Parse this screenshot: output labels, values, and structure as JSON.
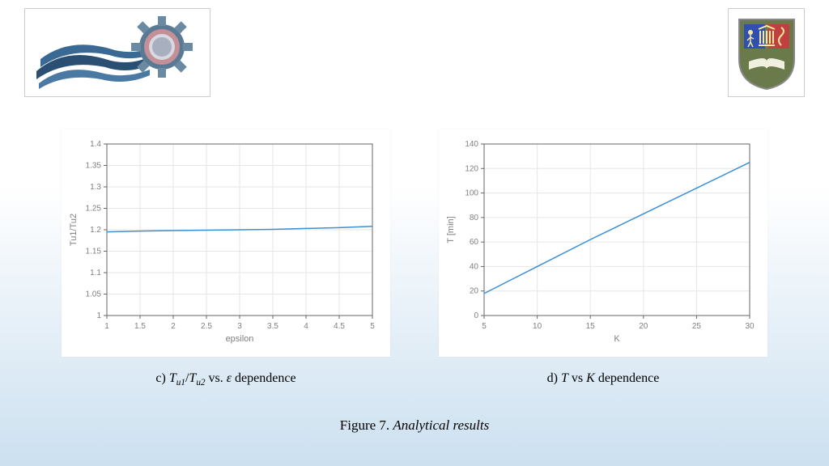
{
  "logos": {
    "left_name": "wave-gear-logo",
    "right_name": "university-shield-logo"
  },
  "chart_left": {
    "type": "line",
    "xlabel": "epsilon",
    "ylabel": "Tu1/Tu2",
    "xlim": [
      1,
      5
    ],
    "ylim": [
      1,
      1.4
    ],
    "xticks": [
      1,
      1.5,
      2,
      2.5,
      3,
      3.5,
      4,
      4.5,
      5
    ],
    "yticks": [
      1,
      1.05,
      1.1,
      1.15,
      1.2,
      1.25,
      1.3,
      1.35,
      1.4
    ],
    "xtick_labels": [
      "1",
      "1.5",
      "2",
      "2.5",
      "3",
      "3.5",
      "4",
      "4.5",
      "5"
    ],
    "ytick_labels": [
      "1",
      "1.05",
      "1.1",
      "1.15",
      "1.2",
      "1.25",
      "1.3",
      "1.35",
      "1.4"
    ],
    "line_color": "#3b8fd6",
    "line_width": 1.5,
    "grid_color": "#e6e6e6",
    "axis_color": "#666666",
    "background_color": "#ffffff",
    "tick_font_size": 10,
    "label_font_size": 11,
    "label_color": "#808080",
    "data_x": [
      1,
      1.5,
      2,
      2.5,
      3,
      3.5,
      4,
      4.5,
      5
    ],
    "data_y": [
      1.195,
      1.197,
      1.198,
      1.199,
      1.2,
      1.201,
      1.203,
      1.205,
      1.208
    ]
  },
  "chart_right": {
    "type": "line",
    "xlabel": "K",
    "ylabel": "T [min]",
    "xlim": [
      5,
      30
    ],
    "ylim": [
      0,
      140
    ],
    "xticks": [
      5,
      10,
      15,
      20,
      25,
      30
    ],
    "yticks": [
      0,
      20,
      40,
      60,
      80,
      100,
      120,
      140
    ],
    "xtick_labels": [
      "5",
      "10",
      "15",
      "20",
      "25",
      "30"
    ],
    "ytick_labels": [
      "0",
      "20",
      "40",
      "60",
      "80",
      "100",
      "120",
      "140"
    ],
    "line_color": "#3b8fd6",
    "line_width": 1.5,
    "grid_color": "#e6e6e6",
    "axis_color": "#666666",
    "background_color": "#ffffff",
    "tick_font_size": 10,
    "label_font_size": 11,
    "label_color": "#808080",
    "data_x": [
      5,
      10,
      15,
      20,
      25,
      30
    ],
    "data_y": [
      18,
      40,
      62,
      83,
      104,
      125
    ]
  },
  "captions": {
    "left_prefix": "c) ",
    "left_var1": "T",
    "left_sub1": "u1",
    "left_slash": "/",
    "left_var2": "T",
    "left_sub2": "u2",
    "left_mid": "  vs. ",
    "left_eps": "ε",
    "left_suffix": " dependence",
    "right_prefix": "d) ",
    "right_T": "T",
    "right_mid": " vs ",
    "right_K": "K",
    "right_suffix": " dependence",
    "figure_label": "Figure 7. ",
    "figure_title": "Analytical results"
  }
}
